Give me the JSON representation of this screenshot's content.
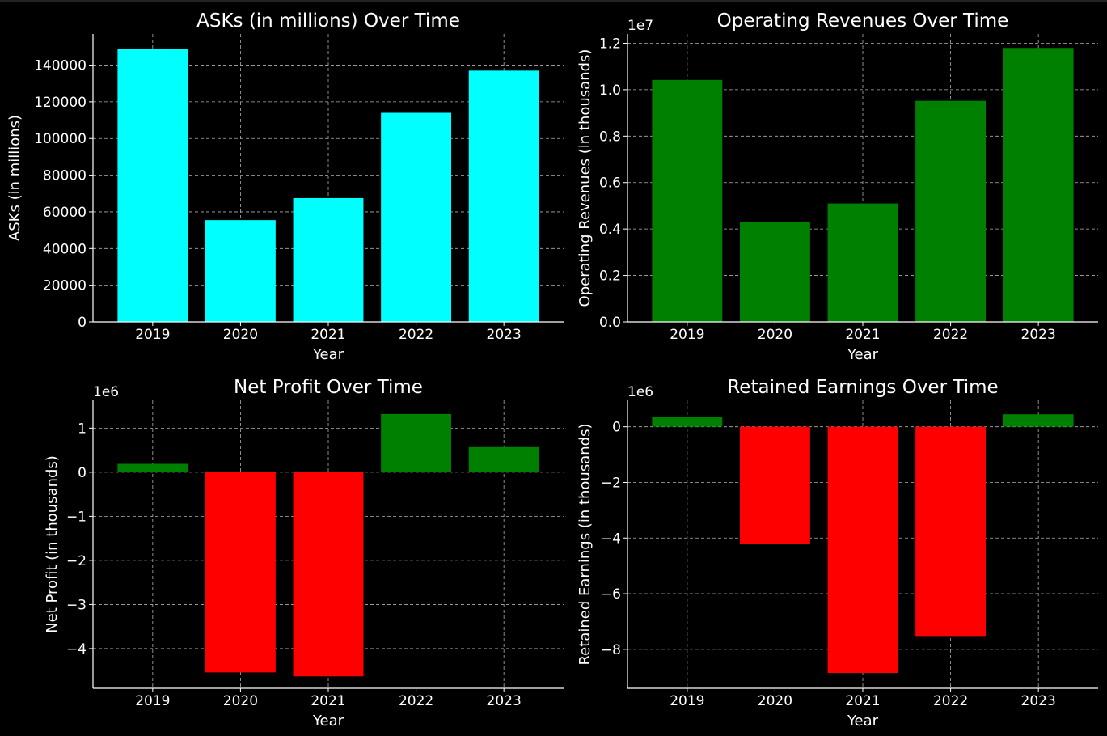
{
  "chart_data": [
    {
      "type": "bar",
      "title": "ASKs (in millions) Over Time",
      "xlabel": "Year",
      "ylabel": "ASKs (in millions)",
      "categories": [
        "2019",
        "2020",
        "2021",
        "2022",
        "2023"
      ],
      "values": [
        149000,
        55500,
        67500,
        114000,
        137000
      ],
      "ylim": [
        0,
        157000
      ],
      "yticks": [
        0,
        20000,
        40000,
        60000,
        80000,
        100000,
        120000,
        140000
      ],
      "ytick_labels": [
        "0",
        "20000",
        "40000",
        "60000",
        "80000",
        "100000",
        "120000",
        "140000"
      ],
      "offset_label": "",
      "grid": true,
      "bar_colors": [
        "#00ffff",
        "#00ffff",
        "#00ffff",
        "#00ffff",
        "#00ffff"
      ]
    },
    {
      "type": "bar",
      "title": "Operating Revenues Over Time",
      "xlabel": "Year",
      "ylabel": "Operating Revenues (in thousands)",
      "categories": [
        "2019",
        "2020",
        "2021",
        "2022",
        "2023"
      ],
      "values": [
        10420000,
        4300000,
        5100000,
        9520000,
        11800000
      ],
      "ylim": [
        0,
        12400000
      ],
      "yticks": [
        0,
        2000000,
        4000000,
        6000000,
        8000000,
        10000000,
        12000000
      ],
      "ytick_labels": [
        "0.0",
        "0.2",
        "0.4",
        "0.6",
        "0.8",
        "1.0",
        "1.2"
      ],
      "offset_label": "1e7",
      "grid": true,
      "bar_colors": [
        "#008000",
        "#008000",
        "#008000",
        "#008000",
        "#008000"
      ]
    },
    {
      "type": "bar",
      "title": "Net Profit Over Time",
      "xlabel": "Year",
      "ylabel": "Net Profit (in thousands)",
      "categories": [
        "2019",
        "2020",
        "2021",
        "2022",
        "2023"
      ],
      "values": [
        190000,
        -4540000,
        -4630000,
        1320000,
        570000
      ],
      "ylim": [
        -4900000,
        1630000
      ],
      "yticks": [
        -4000000,
        -3000000,
        -2000000,
        -1000000,
        0,
        1000000
      ],
      "ytick_labels": [
        "−4",
        "−3",
        "−2",
        "−1",
        "0",
        "1"
      ],
      "offset_label": "1e6",
      "grid": true,
      "bar_colors": [
        "#008000",
        "#ff0000",
        "#ff0000",
        "#008000",
        "#008000"
      ]
    },
    {
      "type": "bar",
      "title": "Retained Earnings Over Time",
      "xlabel": "Year",
      "ylabel": "Retained Earnings (in thousands)",
      "categories": [
        "2019",
        "2020",
        "2021",
        "2022",
        "2023"
      ],
      "values": [
        350000,
        -4200000,
        -8850000,
        -7520000,
        450000
      ],
      "ylim": [
        -9400000,
        950000
      ],
      "yticks": [
        -8000000,
        -6000000,
        -4000000,
        -2000000,
        0
      ],
      "ytick_labels": [
        "−8",
        "−6",
        "−4",
        "−2",
        "0"
      ],
      "offset_label": "1e6",
      "grid": true,
      "bar_colors": [
        "#008000",
        "#ff0000",
        "#ff0000",
        "#ff0000",
        "#008000"
      ]
    }
  ]
}
